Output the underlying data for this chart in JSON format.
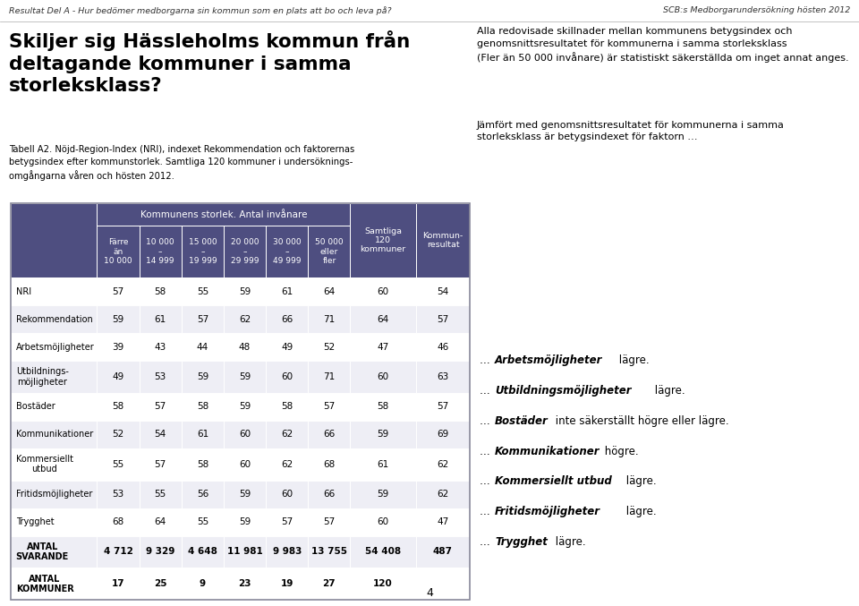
{
  "header_top": "Resultat Del A - Hur bedömer medborgarna sin kommun som en plats att bo och leva på?",
  "header_top_right": "SCB:s Medborgarundersökning hösten 2012",
  "page_number": "4",
  "left_title_line1": "Skiljer sig Hässleholms kommun från",
  "left_title_line2": "deltagande kommuner i samma",
  "left_title_line3": "storleksklass?",
  "table_caption_line1": "Tabell A2. Nöjd-Region-Index (NRI), indexet Rekommendation och faktorernas",
  "table_caption_line2": "betygsindex efter kommunstorlek. Samtliga 120 kommuner i undersöknings-",
  "table_caption_line3": "omgångarna våren och hösten 2012.",
  "col_group_header": "Kommunens storlek. Antal invånare",
  "sub_col_labels": [
    "Färre\nän\n10 000",
    "10 000\n–\n14 999",
    "15 000\n–\n19 999",
    "20 000\n–\n29 999",
    "30 000\n–\n49 999",
    "50 000\neller\nfler"
  ],
  "col_samtliga": "Samtliga\n120\nkommuner",
  "col_kommun": "Kommun-\nresultat",
  "row_labels": [
    "NRI",
    "Rekommendation",
    "Arbetsmöjligheter",
    "Utbildnings-\nmöjligheter",
    "Bostäder",
    "Kommunikationer",
    "Kommersiellt\nutbud",
    "Fritidsmöjligheter",
    "Trygghet",
    "ANTAL\nSVARANDE",
    "ANTAL\nKOMMUNER"
  ],
  "data": [
    [
      57,
      58,
      55,
      59,
      61,
      64,
      60,
      54
    ],
    [
      59,
      61,
      57,
      62,
      66,
      71,
      64,
      57
    ],
    [
      39,
      43,
      44,
      48,
      49,
      52,
      47,
      46
    ],
    [
      49,
      53,
      59,
      59,
      60,
      71,
      60,
      63
    ],
    [
      58,
      57,
      58,
      59,
      58,
      57,
      58,
      57
    ],
    [
      52,
      54,
      61,
      60,
      62,
      66,
      59,
      69
    ],
    [
      55,
      57,
      58,
      60,
      62,
      68,
      61,
      62
    ],
    [
      53,
      55,
      56,
      59,
      60,
      66,
      59,
      62
    ],
    [
      68,
      64,
      55,
      59,
      57,
      57,
      60,
      47
    ],
    [
      "4 712",
      "9 329",
      "4 648",
      "11 981",
      "9 983",
      "13 755",
      "54 408",
      "487"
    ],
    [
      "17",
      "25",
      "9",
      "23",
      "19",
      "27",
      "120",
      ""
    ]
  ],
  "right_para1": "Alla redovisade skillnader mellan kommunens betygsindex och\ngenomsnittsresultatet för kommunerna i samma storleksklass\n(Fler än 50 000 invånare) är statistiskt säkerställda om inget annat anges.",
  "right_para2": "Jämfört med genomsnittsresultatet för kommunerna i samma\nstorleksklass är betygsindexet för faktorn …",
  "right_bullets": [
    {
      "bold": "Arbetsmöjligheter",
      "rest": " lägre."
    },
    {
      "bold": "Utbildningsmöjligheter",
      "rest": " lägre."
    },
    {
      "bold": "Bostäder",
      "rest": " inte säkerställt högre eller lägre."
    },
    {
      "bold": "Kommunikationer",
      "rest": " högre."
    },
    {
      "bold": "Kommersiellt utbud",
      "rest": " lägre."
    },
    {
      "bold": "Fritidsmöjligheter",
      "rest": " lägre."
    },
    {
      "bold": "Trygghet",
      "rest": " lägre."
    }
  ],
  "header_color": "#4e4e80",
  "header_text_color": "#ffffff",
  "alt_row_color": "#eeeef5",
  "white_row_color": "#ffffff",
  "border_color": "#888899"
}
